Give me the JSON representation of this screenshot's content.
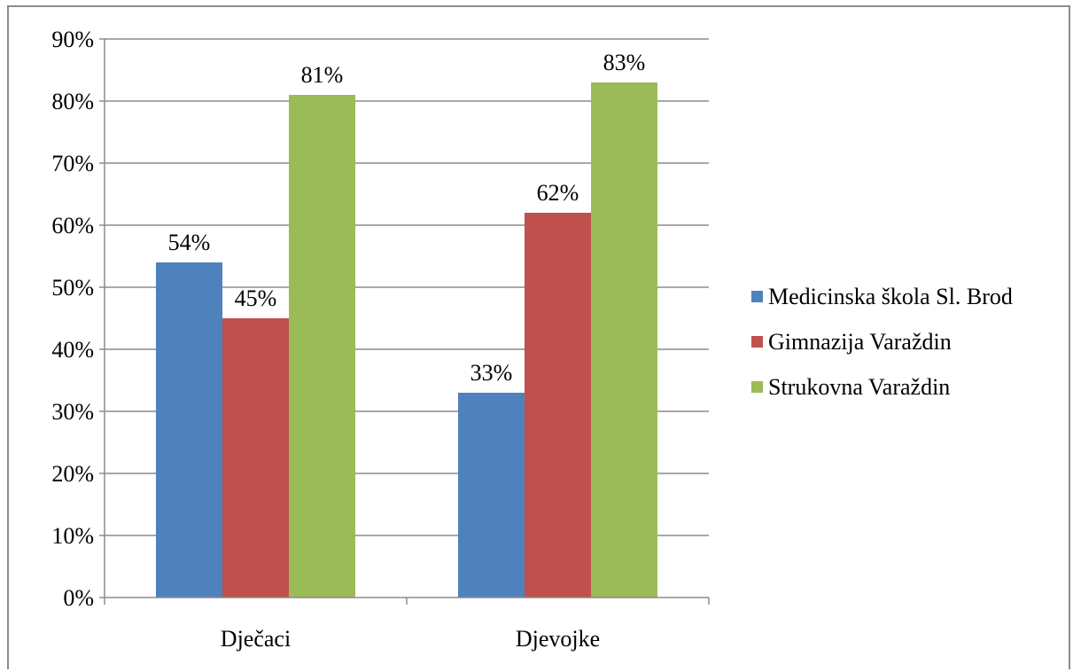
{
  "chart_data": {
    "type": "bar",
    "categories": [
      "Dječaci",
      "Djevojke"
    ],
    "series": [
      {
        "name": "Medicinska škola Sl. Brod",
        "values": [
          54,
          33
        ],
        "color": "#4f81bd"
      },
      {
        "name": "Gimnazija Varaždin",
        "values": [
          45,
          62
        ],
        "color": "#c0504d"
      },
      {
        "name": "Strukovna Varaždin",
        "values": [
          81,
          83
        ],
        "color": "#9bbb59"
      }
    ],
    "data_labels": [
      [
        "54%",
        "33%"
      ],
      [
        "45%",
        "62%"
      ],
      [
        "81%",
        "83%"
      ]
    ],
    "yticks": [
      0,
      10,
      20,
      30,
      40,
      50,
      60,
      70,
      80,
      90
    ],
    "ytick_labels": [
      "0%",
      "10%",
      "20%",
      "30%",
      "40%",
      "50%",
      "60%",
      "70%",
      "80%",
      "90%"
    ],
    "ylim": [
      0,
      90
    ],
    "grid": true,
    "legend_position": "right"
  }
}
